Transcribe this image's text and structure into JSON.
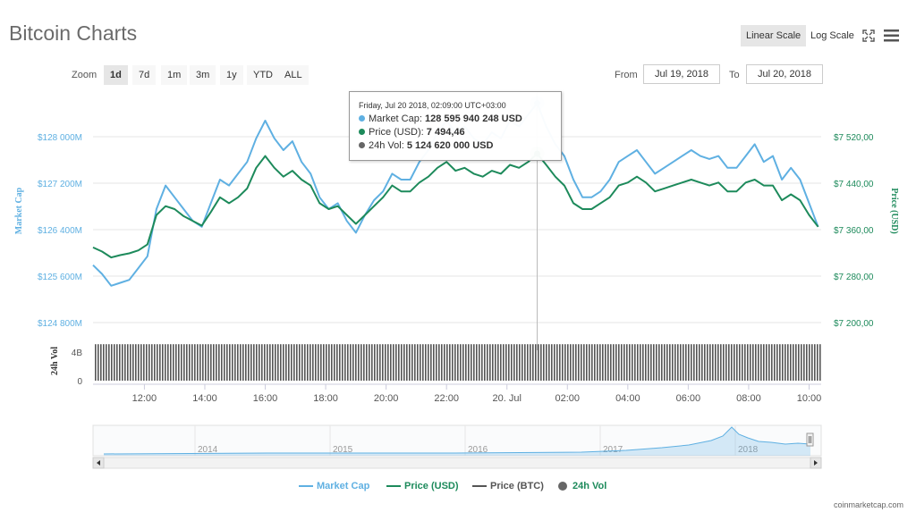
{
  "title": "Bitcoin Charts",
  "scale_buttons": [
    {
      "label": "Linear Scale",
      "active": true
    },
    {
      "label": "Log Scale",
      "active": false
    }
  ],
  "icons": [
    "fullscreen-icon",
    "menu-icon"
  ],
  "zoom": {
    "label": "Zoom",
    "buttons": [
      {
        "label": "1d",
        "active": true
      },
      {
        "label": "7d",
        "active": false
      },
      {
        "label": "1m",
        "active": false
      },
      {
        "label": "3m",
        "active": false
      },
      {
        "label": "1y",
        "active": false
      },
      {
        "label": "YTD",
        "active": false
      },
      {
        "label": "ALL",
        "active": false
      }
    ]
  },
  "range": {
    "from_label": "From",
    "from_value": "Jul 19, 2018",
    "to_label": "To",
    "to_value": "Jul 20, 2018"
  },
  "tooltip": {
    "date": "Friday, Jul 20 2018, 02:09:00 UTC+03:00",
    "rows": [
      {
        "label": "Market Cap:",
        "value": "128 595 940 248 USD",
        "color": "#5fb0e2"
      },
      {
        "label": "Price (USD):",
        "value": "7 494,46",
        "color": "#1d8a5b"
      },
      {
        "label": "24h Vol:",
        "value": "5 124 620 000 USD",
        "color": "#666666"
      }
    ]
  },
  "chart_data": {
    "type": "line",
    "left_axis": {
      "label": "Market Cap",
      "ticks": [
        "$124 800M",
        "$125 600M",
        "$126 400M",
        "$127 200M",
        "$128 000M"
      ],
      "range": [
        124800,
        128800
      ],
      "color": "#5fb0e2"
    },
    "right_axis": {
      "label": "Price (USD)",
      "ticks": [
        "$7 200,00",
        "$7 280,00",
        "$7 360,00",
        "$7 440,00",
        "$7 520,00"
      ],
      "range": [
        7200,
        7600
      ],
      "color": "#1d8a5b"
    },
    "volume_axis": {
      "label": "24h Vol",
      "ticks": [
        "4B",
        "0"
      ],
      "values_billions": 5.1
    },
    "x_ticks": [
      "12:00",
      "14:00",
      "16:00",
      "18:00",
      "20:00",
      "22:00",
      "20. Jul",
      "02:00",
      "04:00",
      "06:00",
      "08:00",
      "10:00"
    ],
    "x_range_hours": [
      10.3,
      34.4
    ],
    "series": [
      {
        "name": "Market Cap",
        "color": "#5fb0e2",
        "hours": [
          10.3,
          10.6,
          10.9,
          11.2,
          11.5,
          11.8,
          12.1,
          12.4,
          12.7,
          13.0,
          13.3,
          13.6,
          13.9,
          14.2,
          14.5,
          14.8,
          15.1,
          15.4,
          15.7,
          16.0,
          16.3,
          16.6,
          16.9,
          17.2,
          17.5,
          17.8,
          18.1,
          18.4,
          18.7,
          19.0,
          19.3,
          19.6,
          19.9,
          20.2,
          20.5,
          20.8,
          21.1,
          21.4,
          21.7,
          22.0,
          22.3,
          22.6,
          22.9,
          23.2,
          23.5,
          23.8,
          24.1,
          24.4,
          24.7,
          25.0,
          25.3,
          25.6,
          25.9,
          26.2,
          26.5,
          26.8,
          27.1,
          27.4,
          27.7,
          28.0,
          28.3,
          28.6,
          28.9,
          29.2,
          29.5,
          29.8,
          30.1,
          30.4,
          30.7,
          31.0,
          31.3,
          31.6,
          31.9,
          32.2,
          32.5,
          32.8,
          33.1,
          33.4,
          33.7,
          34.0,
          34.3
        ],
        "values": [
          125850,
          125700,
          125500,
          125550,
          125600,
          125800,
          126000,
          126800,
          127200,
          127000,
          126800,
          126600,
          126500,
          126900,
          127300,
          127200,
          127400,
          127600,
          128000,
          128300,
          128000,
          127800,
          127950,
          127600,
          127400,
          127000,
          126800,
          126900,
          126600,
          126400,
          126700,
          126950,
          127100,
          127400,
          127300,
          127300,
          127600,
          127800,
          128100,
          128300,
          128100,
          128200,
          128000,
          127900,
          128100,
          128000,
          128300,
          128200,
          128400,
          128596,
          128200,
          127900,
          127700,
          127300,
          127000,
          127000,
          127100,
          127300,
          127600,
          127700,
          127800,
          127600,
          127400,
          127500,
          127600,
          127700,
          127800,
          127700,
          127650,
          127700,
          127500,
          127500,
          127700,
          127900,
          127600,
          127700,
          127300,
          127500,
          127300,
          126900,
          126500
        ]
      },
      {
        "name": "Price (USD)",
        "color": "#1d8a5b",
        "hours": [
          10.3,
          10.6,
          10.9,
          11.2,
          11.5,
          11.8,
          12.1,
          12.4,
          12.7,
          13.0,
          13.3,
          13.6,
          13.9,
          14.2,
          14.5,
          14.8,
          15.1,
          15.4,
          15.7,
          16.0,
          16.3,
          16.6,
          16.9,
          17.2,
          17.5,
          17.8,
          18.1,
          18.4,
          18.7,
          19.0,
          19.3,
          19.6,
          19.9,
          20.2,
          20.5,
          20.8,
          21.1,
          21.4,
          21.7,
          22.0,
          22.3,
          22.6,
          22.9,
          23.2,
          23.5,
          23.8,
          24.1,
          24.4,
          24.7,
          25.0,
          25.3,
          25.6,
          25.9,
          26.2,
          26.5,
          26.8,
          27.1,
          27.4,
          27.7,
          28.0,
          28.3,
          28.6,
          28.9,
          29.2,
          29.5,
          29.8,
          30.1,
          30.4,
          30.7,
          31.0,
          31.3,
          31.6,
          31.9,
          32.2,
          32.5,
          32.8,
          33.1,
          33.4,
          33.7,
          34.0,
          34.3
        ],
        "values": [
          7335,
          7328,
          7318,
          7322,
          7325,
          7330,
          7340,
          7390,
          7405,
          7400,
          7388,
          7380,
          7372,
          7395,
          7420,
          7410,
          7420,
          7435,
          7470,
          7490,
          7470,
          7455,
          7465,
          7450,
          7440,
          7410,
          7400,
          7405,
          7390,
          7375,
          7390,
          7405,
          7420,
          7440,
          7430,
          7430,
          7445,
          7455,
          7470,
          7480,
          7465,
          7470,
          7460,
          7455,
          7465,
          7460,
          7475,
          7470,
          7480,
          7494,
          7475,
          7455,
          7440,
          7410,
          7400,
          7400,
          7410,
          7420,
          7440,
          7445,
          7455,
          7445,
          7430,
          7435,
          7440,
          7445,
          7450,
          7445,
          7440,
          7445,
          7430,
          7430,
          7445,
          7450,
          7440,
          7440,
          7415,
          7425,
          7415,
          7390,
          7370
        ]
      }
    ],
    "navigator": {
      "year_labels": [
        "2014",
        "2015",
        "2016",
        "2017",
        "2018"
      ]
    },
    "legend": [
      {
        "name": "Market Cap",
        "color": "#5fb0e2",
        "kind": "line"
      },
      {
        "name": "Price (USD)",
        "color": "#1d8a5b",
        "kind": "line"
      },
      {
        "name": "Price (BTC)",
        "color": "#555555",
        "kind": "line"
      },
      {
        "name": "24h Vol",
        "color": "#666666",
        "kind": "dot"
      }
    ]
  },
  "credit": "coinmarketcap.com"
}
